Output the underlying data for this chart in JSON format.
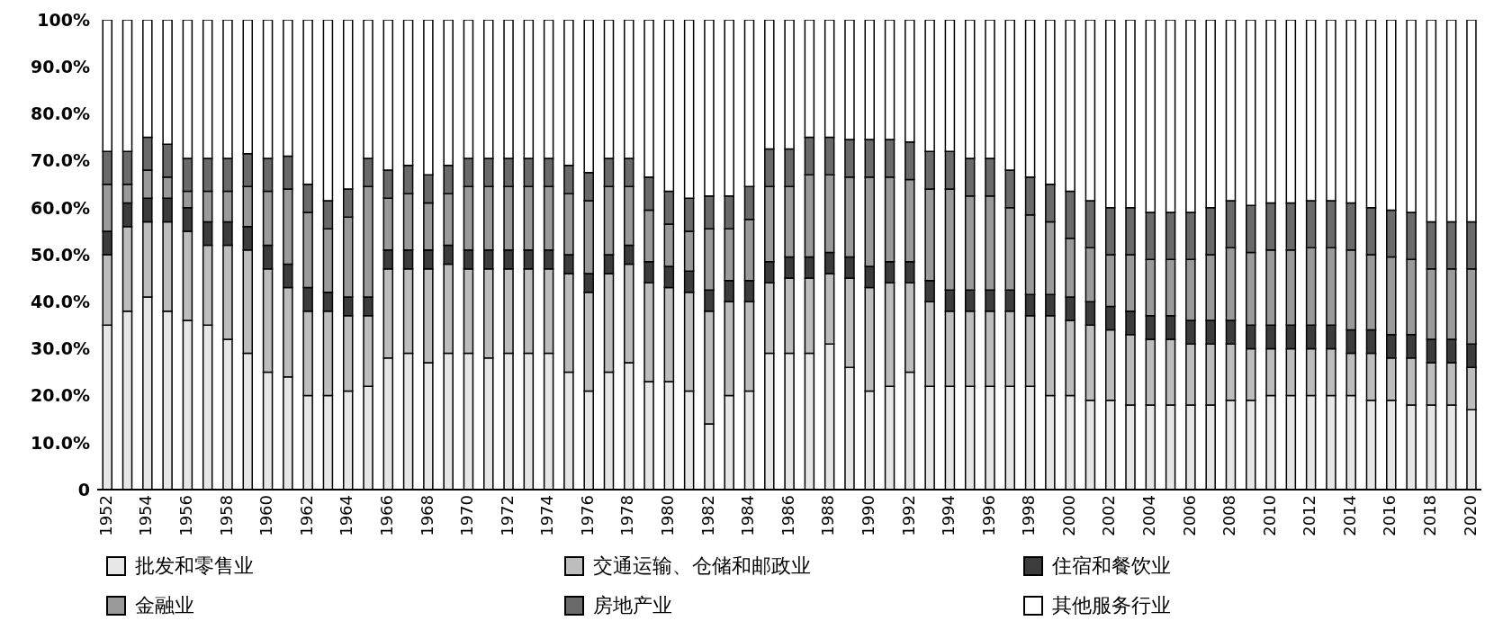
{
  "chart_data": {
    "type": "bar",
    "stacked": true,
    "categories": [
      "1952",
      null,
      "1954",
      null,
      "1956",
      null,
      "1958",
      null,
      "1960",
      null,
      "1962",
      null,
      "1964",
      null,
      "1966",
      null,
      "1968",
      null,
      "1970",
      null,
      "1972",
      null,
      "1974",
      null,
      "1976",
      null,
      "1978",
      null,
      "1980",
      null,
      "1982",
      null,
      "1984",
      null,
      "1986",
      null,
      "1988",
      null,
      "1990",
      null,
      "1992",
      null,
      "1994",
      null,
      "1996",
      null,
      "1998",
      null,
      "2000",
      null,
      "2002",
      null,
      "2004",
      null,
      "2006",
      null,
      "2008",
      null,
      "2010",
      null,
      "2012",
      null,
      "2014",
      null,
      "2016",
      null,
      "2018",
      null,
      "2020"
    ],
    "series": [
      {
        "name": "批发和零售业",
        "color": "#e6e6e6",
        "values": [
          35,
          38,
          41,
          38,
          36,
          35,
          32,
          29,
          25,
          24,
          20,
          20,
          21,
          22,
          28,
          29,
          27,
          29,
          29,
          28,
          29,
          29,
          29,
          25,
          21,
          25,
          27,
          23,
          23,
          21,
          14,
          20,
          21,
          29,
          29,
          29,
          31,
          26,
          21,
          22,
          25,
          22,
          22,
          22,
          22,
          22,
          22,
          20,
          20,
          19,
          19,
          18,
          18,
          18,
          18,
          18,
          19,
          19,
          20,
          20,
          20,
          20,
          20,
          19,
          19,
          18,
          18,
          18,
          17
        ]
      },
      {
        "name": "交通运输、仓储和邮政业",
        "color": "#bdbdbd",
        "values": [
          15,
          18,
          16,
          19,
          19,
          17,
          20,
          22,
          22,
          19,
          18,
          18,
          16,
          15,
          19,
          18,
          20,
          19,
          18,
          19,
          18,
          18,
          18,
          21,
          21,
          21,
          21,
          21,
          20,
          21,
          24,
          20,
          19,
          15,
          16,
          16,
          15,
          19,
          22,
          22,
          19,
          18,
          16,
          16,
          16,
          16,
          15,
          17,
          16,
          16,
          15,
          15,
          14,
          14,
          13,
          13,
          12,
          11,
          10,
          10,
          10,
          10,
          9,
          10,
          9,
          10,
          9,
          9,
          9
        ]
      },
      {
        "name": "住宿和餐饮业",
        "color": "#3c3c3c",
        "values": [
          5,
          5,
          5,
          5,
          5,
          5,
          5,
          5,
          5,
          5,
          5,
          4,
          4,
          4,
          4,
          4,
          4,
          4,
          4,
          4,
          4,
          4,
          4,
          4,
          4,
          4,
          4,
          4.5,
          4.5,
          4.5,
          4.5,
          4.5,
          4.5,
          4.5,
          4.5,
          4.5,
          4.5,
          4.5,
          4.5,
          4.5,
          4.5,
          4.5,
          4.5,
          4.5,
          4.5,
          4.5,
          4.5,
          4.5,
          5,
          5,
          5,
          5,
          5,
          5,
          5,
          5,
          5,
          5,
          5,
          5,
          5,
          5,
          5,
          5,
          5,
          5,
          5,
          5,
          5
        ]
      },
      {
        "name": "金融业",
        "color": "#9a9a9a",
        "values": [
          10,
          4,
          6,
          4.5,
          3.5,
          6.5,
          6.5,
          8.5,
          11.5,
          16,
          16,
          13.5,
          17,
          23.5,
          11,
          12,
          10,
          11,
          13.5,
          13.5,
          13.5,
          13.5,
          13.5,
          13,
          15.5,
          14.5,
          12.5,
          11,
          9,
          8.5,
          13,
          11,
          13,
          16,
          15,
          17.5,
          16.5,
          17,
          19,
          18,
          17.5,
          19.5,
          21.5,
          20,
          20,
          17.5,
          17,
          15.5,
          12.5,
          11.5,
          11,
          12,
          12,
          12,
          13,
          14,
          15.5,
          15.5,
          16,
          16,
          16.5,
          16.5,
          17,
          16,
          16.5,
          16,
          15,
          15,
          16
        ]
      },
      {
        "name": "房地产业",
        "color": "#6a6a6a",
        "values": [
          7,
          7,
          7,
          7,
          7,
          7,
          7,
          7,
          7,
          7,
          6,
          6,
          6,
          6,
          6,
          6,
          6,
          6,
          6,
          6,
          6,
          6,
          6,
          6,
          6,
          6,
          6,
          7,
          7,
          7,
          7,
          7,
          7,
          8,
          8,
          8,
          8,
          8,
          8,
          8,
          8,
          8,
          8,
          8,
          8,
          8,
          8,
          8,
          10,
          10,
          10,
          10,
          10,
          10,
          10,
          10,
          10,
          10,
          10,
          10,
          10,
          10,
          10,
          10,
          10,
          10,
          10,
          10,
          10
        ]
      },
      {
        "name": "其他服务行业",
        "color": "#ffffff",
        "values": [
          28,
          28,
          25,
          26.5,
          29.5,
          29.5,
          29.5,
          28.5,
          29.5,
          29,
          35,
          38.5,
          36,
          29.5,
          32,
          31,
          33,
          31,
          29.5,
          29.5,
          29.5,
          29.5,
          29.5,
          31,
          32.5,
          29.5,
          29.5,
          33.5,
          36.5,
          38,
          37.5,
          37.5,
          35.5,
          27.5,
          27.5,
          25,
          25,
          25.5,
          25.5,
          25.5,
          26,
          28,
          28,
          29.5,
          29.5,
          32,
          33.5,
          35,
          36.5,
          38.5,
          40,
          40,
          41,
          41,
          41,
          40,
          38.5,
          39.5,
          39,
          39,
          38.5,
          38.5,
          39,
          40,
          40.5,
          41,
          43,
          43,
          43
        ]
      }
    ],
    "ylim": [
      0,
      100
    ],
    "yticks": [
      {
        "value": 0,
        "label": "0"
      },
      {
        "value": 10,
        "label": "10.0%"
      },
      {
        "value": 20,
        "label": "20.0%"
      },
      {
        "value": 30,
        "label": "30.0%"
      },
      {
        "value": 40,
        "label": "40.0%"
      },
      {
        "value": 50,
        "label": "50.0%"
      },
      {
        "value": 60,
        "label": "60.0%"
      },
      {
        "value": 70,
        "label": "70.0%"
      },
      {
        "value": 80,
        "label": "80.0%"
      },
      {
        "value": 90,
        "label": "90.0%"
      },
      {
        "value": 100,
        "label": "100%"
      }
    ],
    "legend": "bottom"
  }
}
